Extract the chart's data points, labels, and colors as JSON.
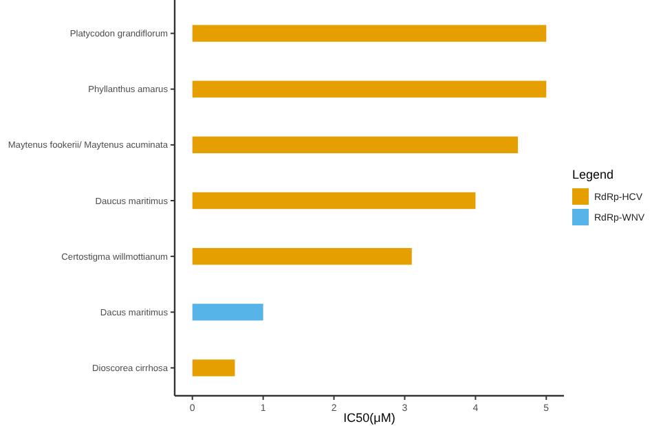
{
  "chart_data": {
    "type": "bar",
    "orientation": "horizontal",
    "xlabel": "IC50(μM)",
    "legend_title": "Legend",
    "legend": "right",
    "grid": false,
    "categories": [
      "Platycodon grandiflorum",
      "Phyllanthus amarus",
      "Maytenus fookerii/ Maytenus acuminata",
      "Daucus maritimus",
      "Certostigma willmottianum",
      "Dacus maritimus",
      "Dioscorea cirrhosa"
    ],
    "series": [
      {
        "name": "RdRp-HCV",
        "color": "#e69f00",
        "values": [
          5,
          5,
          4.6,
          4,
          3.1,
          null,
          0.6
        ]
      },
      {
        "name": "RdRp-WNV",
        "color": "#56b4e9",
        "values": [
          null,
          null,
          null,
          null,
          null,
          1,
          null
        ]
      }
    ],
    "xlim": [
      -0.25,
      5.25
    ],
    "xticks": [
      0,
      1,
      2,
      3,
      4,
      5
    ]
  }
}
